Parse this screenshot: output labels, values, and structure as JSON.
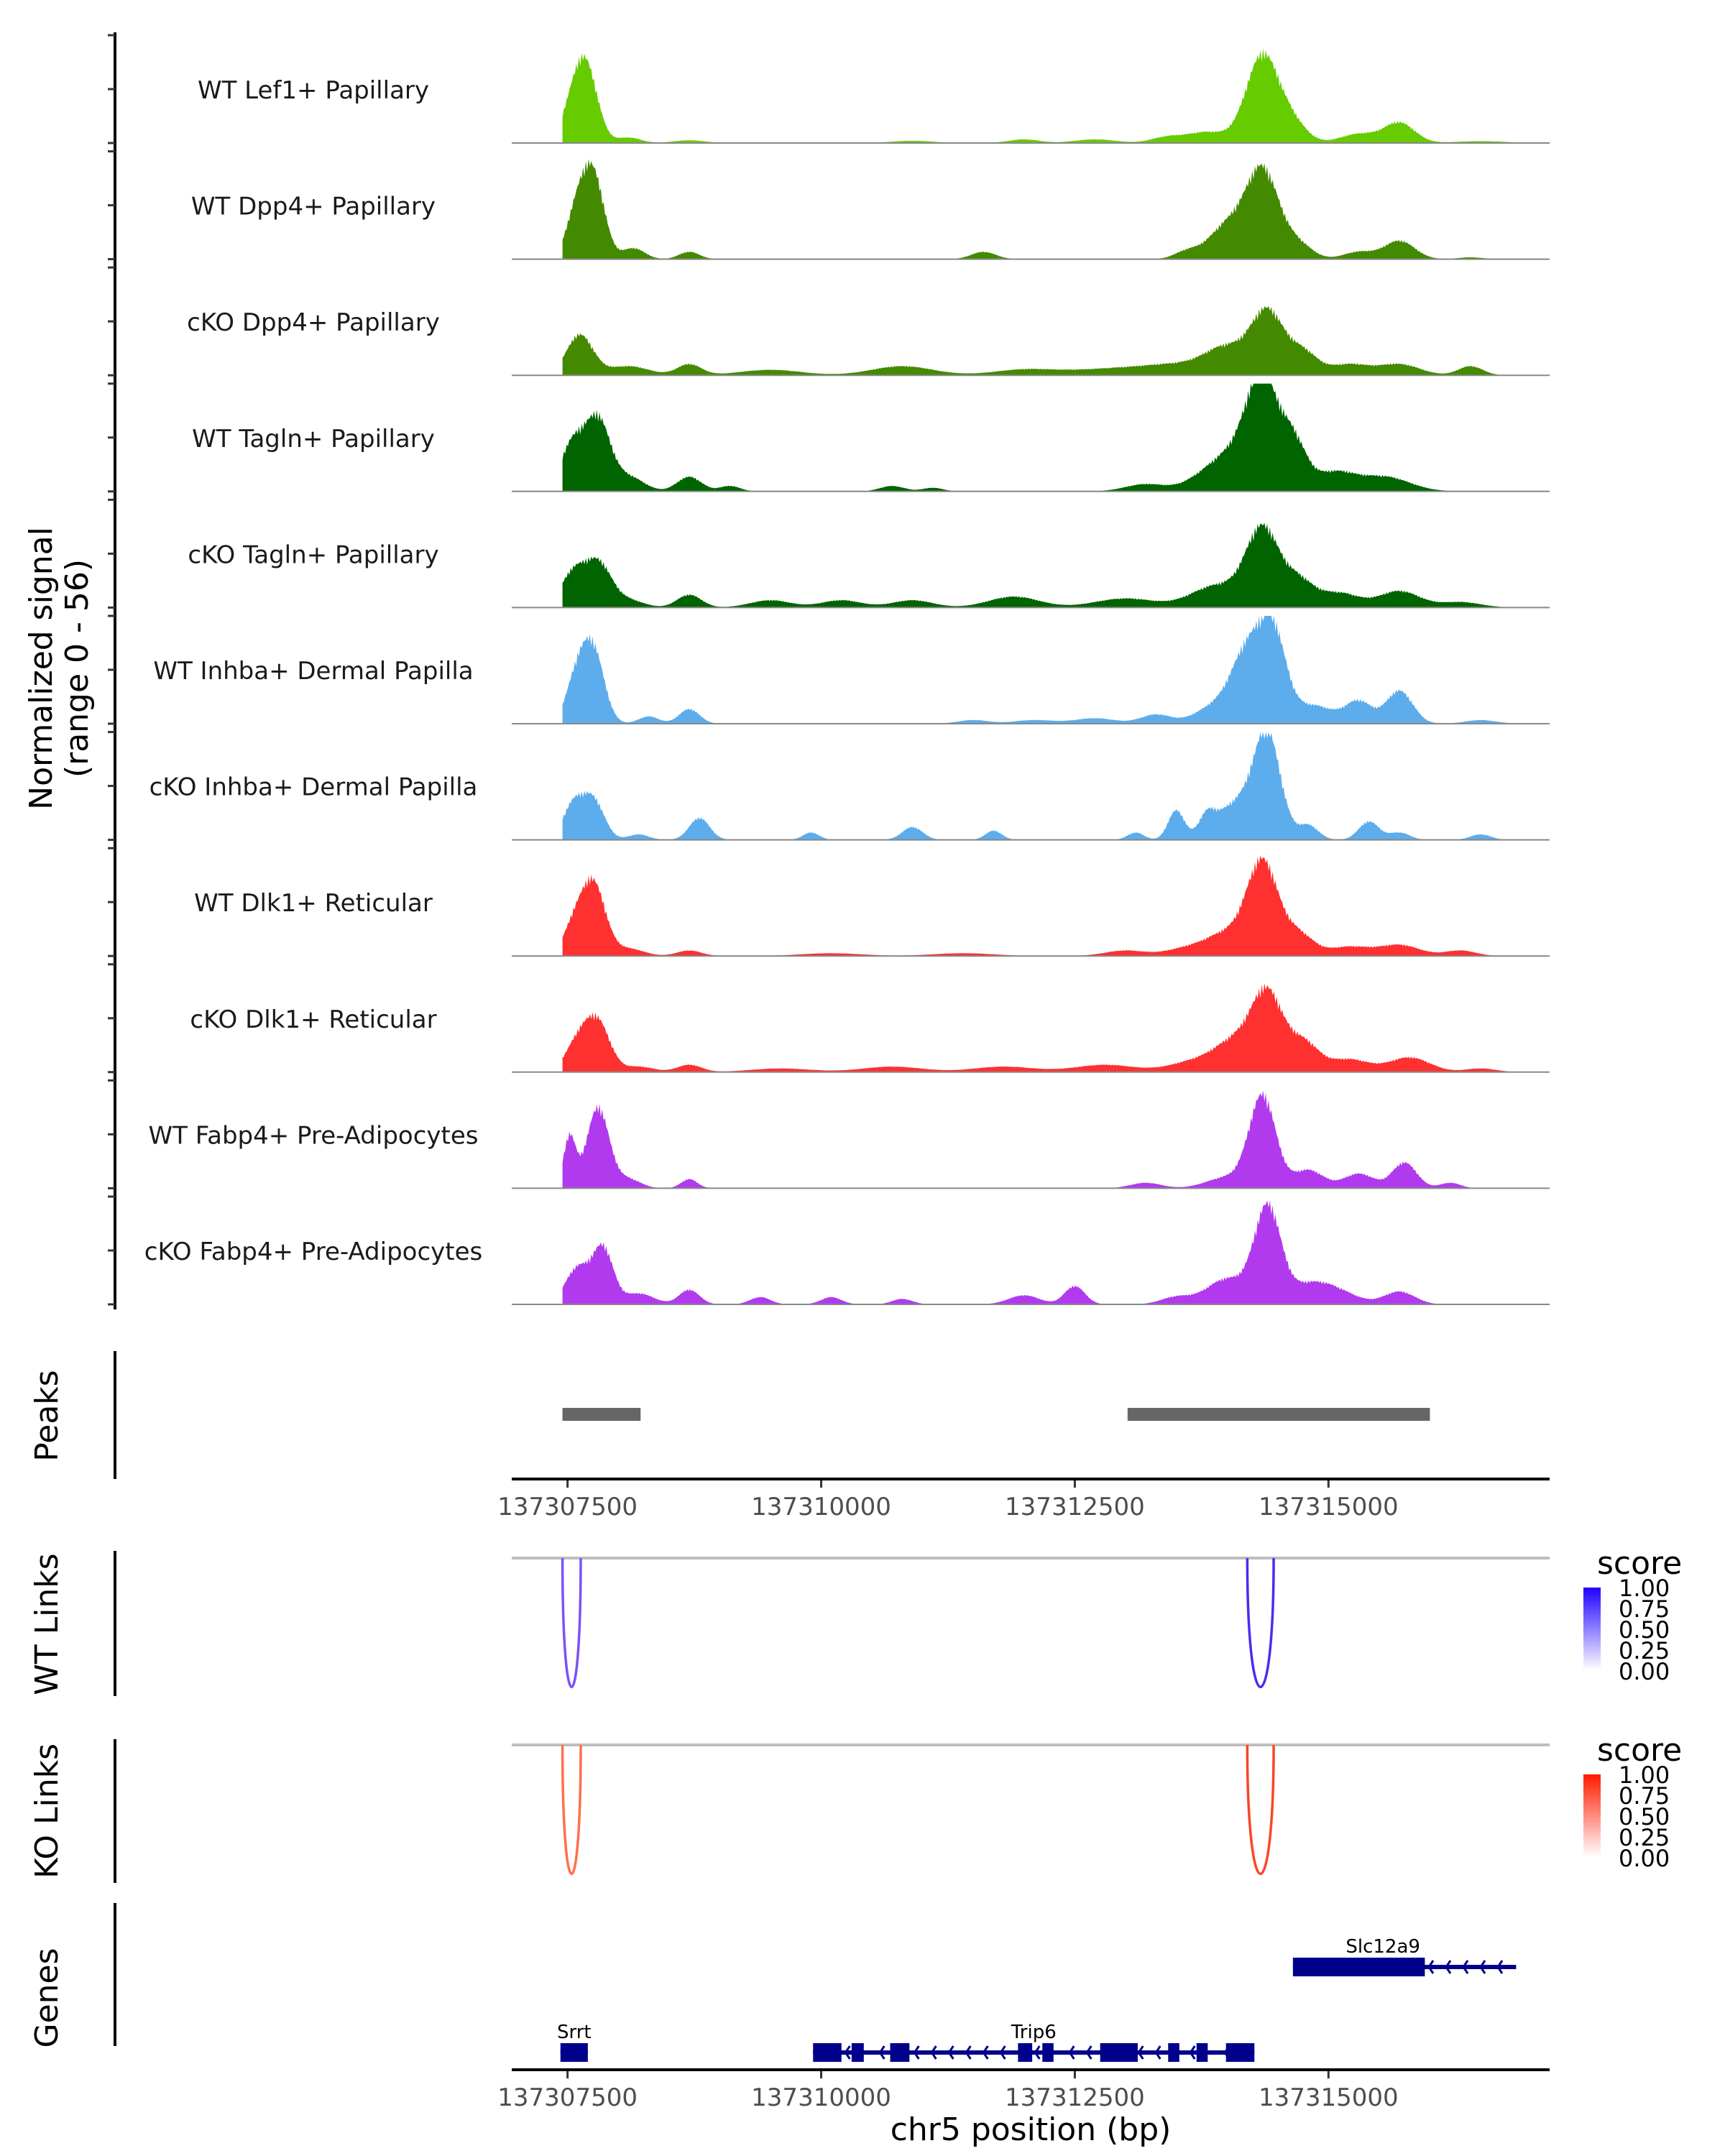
{
  "chart_data": {
    "type": "area",
    "title": "",
    "region": {
      "chrom": "chr5",
      "start": 137306950,
      "end": 137317180
    },
    "xlabel": "chr5 position (bp)",
    "xticks": [
      137307500,
      137310000,
      137312500,
      137315000
    ],
    "xtick_labels": [
      "137307500",
      "137310000",
      "137312500",
      "137315000"
    ],
    "coverage": {
      "ylabel_line1": "Normalized signal",
      "ylabel_line2": "(range 0 - 56)",
      "ylim": [
        0,
        56
      ],
      "tracks": [
        {
          "name": "WT Lef1+ Papillary",
          "color": "#66CC00",
          "peaks": [
            [
              137307580,
              24,
              120
            ],
            [
              137307700,
              30,
              110
            ],
            [
              137308100,
              3,
              120
            ],
            [
              137308700,
              1.5,
              150
            ],
            [
              137310900,
              1.2,
              200
            ],
            [
              137312000,
              2,
              150
            ],
            [
              137312700,
              2,
              200
            ],
            [
              137313400,
              3,
              150
            ],
            [
              137313800,
              6,
              200
            ],
            [
              137314350,
              48,
              160
            ],
            [
              137314650,
              10,
              140
            ],
            [
              137315300,
              5,
              180
            ],
            [
              137315700,
              11,
              150
            ],
            [
              137316500,
              1,
              250
            ]
          ]
        },
        {
          "name": "WT Dpp4+ Papillary",
          "color": "#448A00",
          "peaks": [
            [
              137307580,
              22,
              100
            ],
            [
              137307750,
              46,
              110
            ],
            [
              137308150,
              6,
              110
            ],
            [
              137308700,
              4,
              100
            ],
            [
              137311600,
              4,
              120
            ],
            [
              137313600,
              4,
              120
            ],
            [
              137314000,
              18,
              180
            ],
            [
              137314350,
              48,
              160
            ],
            [
              137314700,
              8,
              140
            ],
            [
              137315300,
              4,
              150
            ],
            [
              137315700,
              10,
              150
            ],
            [
              137316400,
              1,
              120
            ]
          ]
        },
        {
          "name": "cKO Dpp4+ Papillary",
          "color": "#448A00",
          "peaks": [
            [
              137307620,
              22,
              130
            ],
            [
              137308100,
              5,
              200
            ],
            [
              137308700,
              6,
              120
            ],
            [
              137309500,
              3,
              300
            ],
            [
              137310800,
              5,
              300
            ],
            [
              137312000,
              3,
              300
            ],
            [
              137312800,
              3,
              400
            ],
            [
              137313600,
              6,
              400
            ],
            [
              137314000,
              12,
              200
            ],
            [
              137314400,
              34,
              160
            ],
            [
              137314750,
              12,
              140
            ],
            [
              137315200,
              6,
              200
            ],
            [
              137315700,
              6,
              200
            ],
            [
              137316400,
              5,
              120
            ]
          ]
        },
        {
          "name": "WT Tagln+ Papillary",
          "color": "#006400",
          "peaks": [
            [
              137307550,
              26,
              120
            ],
            [
              137307800,
              38,
              120
            ],
            [
              137308100,
              8,
              150
            ],
            [
              137308700,
              8,
              120
            ],
            [
              137309100,
              3,
              100
            ],
            [
              137310700,
              3,
              120
            ],
            [
              137311100,
              2,
              100
            ],
            [
              137313200,
              4,
              200
            ],
            [
              137313800,
              8,
              200
            ],
            [
              137314100,
              18,
              200
            ],
            [
              137314350,
              56,
              150
            ],
            [
              137314650,
              26,
              130
            ],
            [
              137315050,
              10,
              200
            ],
            [
              137315550,
              8,
              250
            ]
          ]
        },
        {
          "name": "cKO Tagln+ Papillary",
          "color": "#006400",
          "peaks": [
            [
              137307550,
              18,
              120
            ],
            [
              137307800,
              24,
              130
            ],
            [
              137308100,
              4,
              150
            ],
            [
              137308700,
              7,
              120
            ],
            [
              137309500,
              4,
              200
            ],
            [
              137310200,
              4,
              200
            ],
            [
              137310900,
              4,
              200
            ],
            [
              137311900,
              6,
              250
            ],
            [
              137313000,
              5,
              300
            ],
            [
              137313900,
              12,
              250
            ],
            [
              137314350,
              42,
              160
            ],
            [
              137314700,
              14,
              150
            ],
            [
              137315100,
              8,
              200
            ],
            [
              137315700,
              9,
              200
            ],
            [
              137316300,
              3,
              200
            ]
          ]
        },
        {
          "name": "WT Inhba+ Dermal Papilla",
          "color": "#5DADEC",
          "peaks": [
            [
              137307580,
              22,
              100
            ],
            [
              137307750,
              40,
              110
            ],
            [
              137308300,
              4,
              100
            ],
            [
              137308700,
              8,
              100
            ],
            [
              137311500,
              2,
              150
            ],
            [
              137312100,
              2,
              200
            ],
            [
              137312700,
              3,
              200
            ],
            [
              137313300,
              5,
              150
            ],
            [
              137313900,
              10,
              200
            ],
            [
              137314200,
              36,
              150
            ],
            [
              137314450,
              48,
              130
            ],
            [
              137314850,
              10,
              200
            ],
            [
              137315300,
              12,
              130
            ],
            [
              137315700,
              18,
              130
            ],
            [
              137316500,
              2,
              150
            ]
          ]
        },
        {
          "name": "cKO Inhba+ Dermal Papilla",
          "color": "#5DADEC",
          "peaks": [
            [
              137307550,
              18,
              100
            ],
            [
              137307750,
              22,
              110
            ],
            [
              137308200,
              3,
              100
            ],
            [
              137308800,
              12,
              100
            ],
            [
              137309900,
              4,
              80
            ],
            [
              137310900,
              7,
              100
            ],
            [
              137311700,
              5,
              80
            ],
            [
              137313100,
              4,
              80
            ],
            [
              137313500,
              16,
              80
            ],
            [
              137313800,
              10,
              80
            ],
            [
              137314100,
              20,
              200
            ],
            [
              137314400,
              54,
              130
            ],
            [
              137314800,
              8,
              100
            ],
            [
              137315400,
              10,
              100
            ],
            [
              137315700,
              4,
              100
            ],
            [
              137316500,
              3,
              100
            ]
          ]
        },
        {
          "name": "WT Dlk1+ Reticular",
          "color": "#FF3030",
          "peaks": [
            [
              137307550,
              14,
              100
            ],
            [
              137307750,
              40,
              120
            ],
            [
              137308100,
              4,
              150
            ],
            [
              137308700,
              3,
              120
            ],
            [
              137310100,
              1.5,
              300
            ],
            [
              137311400,
              1.5,
              300
            ],
            [
              137313000,
              3,
              200
            ],
            [
              137313600,
              4,
              200
            ],
            [
              137314000,
              12,
              200
            ],
            [
              137314350,
              50,
              150
            ],
            [
              137314700,
              12,
              150
            ],
            [
              137315200,
              5,
              200
            ],
            [
              137315700,
              6,
              200
            ],
            [
              137316300,
              3,
              150
            ]
          ]
        },
        {
          "name": "cKO Dlk1+ Reticular",
          "color": "#FF3030",
          "peaks": [
            [
              137307600,
              16,
              120
            ],
            [
              137307800,
              26,
              120
            ],
            [
              137308200,
              3,
              150
            ],
            [
              137308700,
              4,
              120
            ],
            [
              137309600,
              2,
              300
            ],
            [
              137310700,
              3,
              300
            ],
            [
              137311800,
              3,
              300
            ],
            [
              137312800,
              4,
              300
            ],
            [
              137313700,
              6,
              250
            ],
            [
              137314100,
              16,
              200
            ],
            [
              137314400,
              40,
              150
            ],
            [
              137314750,
              16,
              150
            ],
            [
              137315200,
              7,
              200
            ],
            [
              137315800,
              8,
              200
            ],
            [
              137316500,
              2,
              150
            ]
          ]
        },
        {
          "name": "WT Fabp4+ Pre-Adipocytes",
          "color": "#B23AEE",
          "peaks": [
            [
              137307520,
              28,
              60
            ],
            [
              137307800,
              44,
              110
            ],
            [
              137308100,
              5,
              120
            ],
            [
              137308700,
              5,
              80
            ],
            [
              137313200,
              3,
              150
            ],
            [
              137314000,
              6,
              200
            ],
            [
              137314350,
              50,
              130
            ],
            [
              137314800,
              10,
              150
            ],
            [
              137315300,
              8,
              150
            ],
            [
              137315750,
              14,
              120
            ],
            [
              137316200,
              3,
              100
            ]
          ]
        },
        {
          "name": "cKO Fabp4+ Pre-Adipocytes",
          "color": "#B23AEE",
          "peaks": [
            [
              137307600,
              20,
              120
            ],
            [
              137307850,
              30,
              100
            ],
            [
              137308200,
              6,
              150
            ],
            [
              137308700,
              8,
              100
            ],
            [
              137309400,
              4,
              100
            ],
            [
              137310100,
              4,
              100
            ],
            [
              137310800,
              3,
              100
            ],
            [
              137312000,
              5,
              150
            ],
            [
              137312500,
              10,
              100
            ],
            [
              137313500,
              4,
              150
            ],
            [
              137314000,
              14,
              200
            ],
            [
              137314400,
              52,
              130
            ],
            [
              137314800,
              10,
              200
            ],
            [
              137315100,
              6,
              200
            ],
            [
              137315700,
              7,
              150
            ]
          ]
        }
      ]
    },
    "peaks_track": {
      "label": "Peaks",
      "color": "#666666",
      "intervals": [
        [
          137307450,
          137308220
        ],
        [
          137313020,
          137316000
        ]
      ]
    },
    "links_tracks": [
      {
        "label": "WT Links",
        "baseline_color": "#BEBEBE",
        "links": [
          {
            "start": 137307450,
            "end": 137307630,
            "score": 0.7,
            "color": "#7A52F5"
          },
          {
            "start": 137314200,
            "end": 137314460,
            "score": 0.9,
            "color": "#4A2CF0"
          }
        ],
        "legend": {
          "title": "score",
          "ticks": [
            "1.00",
            "0.75",
            "0.50",
            "0.25",
            "0.00"
          ],
          "low": "#FFFFFF",
          "high": "#1F00FF"
        }
      },
      {
        "label": "KO Links",
        "baseline_color": "#BEBEBE",
        "links": [
          {
            "start": 137307450,
            "end": 137307630,
            "score": 0.7,
            "color": "#FF6F4E"
          },
          {
            "start": 137314200,
            "end": 137314460,
            "score": 0.9,
            "color": "#FA4526"
          }
        ],
        "legend": {
          "title": "score",
          "ticks": [
            "1.00",
            "0.75",
            "0.50",
            "0.25",
            "0.00"
          ],
          "low": "#FFFFFF",
          "high": "#FF1A00"
        }
      }
    ],
    "genes_track": {
      "label": "Genes",
      "color": "#00008B",
      "genes": [
        {
          "name": "Slc12a9",
          "strand": "-",
          "row": 0,
          "start": 137314650,
          "end": 137316850,
          "exons": [
            [
              137314650,
              137315950
            ]
          ]
        },
        {
          "name": "Srrt",
          "strand": "-",
          "row": 1,
          "start": 137307430,
          "end": 137307700,
          "exons": [
            [
              137307430,
              137307700
            ]
          ]
        },
        {
          "name": "Trip6",
          "strand": "-",
          "row": 1,
          "start": 137309920,
          "end": 137314270,
          "exons": [
            [
              137309920,
              137310200
            ],
            [
              137310300,
              137310420
            ],
            [
              137310680,
              137310870
            ],
            [
              137311940,
              137312080
            ],
            [
              137312180,
              137312290
            ],
            [
              137312750,
              137313120
            ],
            [
              137313420,
              137313530
            ],
            [
              137313700,
              137313810
            ],
            [
              137313990,
              137314270
            ]
          ]
        }
      ]
    }
  }
}
